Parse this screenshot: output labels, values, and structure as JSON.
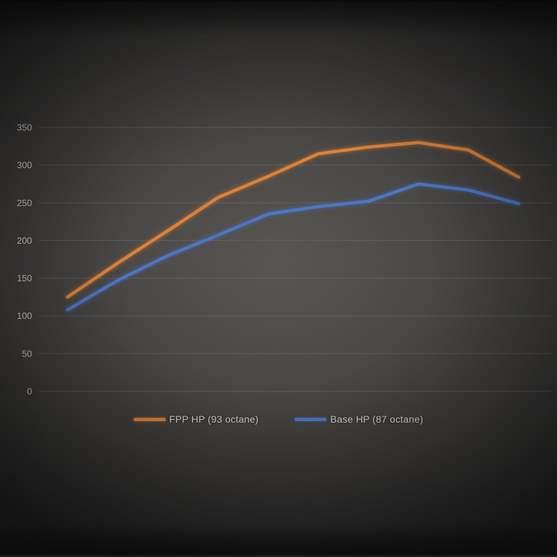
{
  "chart_data": {
    "type": "line",
    "title": "",
    "x": [
      1,
      2,
      3,
      4,
      5,
      6,
      7,
      8,
      9,
      10
    ],
    "x_labels_visible": false,
    "series": [
      {
        "name": "FPP HP (93 octane)",
        "color": "#df8238",
        "values": [
          125,
          170,
          213,
          257,
          285,
          315,
          324,
          330,
          320,
          284
        ]
      },
      {
        "name": "Base HP (87 octane)",
        "color": "#4b77c5",
        "values": [
          108,
          147,
          180,
          207,
          235,
          245,
          252,
          275,
          267,
          249
        ]
      }
    ],
    "y_ticks": [
      0,
      50,
      100,
      150,
      200,
      250,
      300,
      350
    ],
    "ylim": [
      0,
      350
    ],
    "ylabel": "",
    "xlabel": "",
    "grid": "horizontal",
    "legend_position": "bottom"
  },
  "style": {
    "background": "#3f3d3b",
    "gridline_color": "#7a7876",
    "tick_label_color": "#cbc9c7",
    "legend_text_color": "#d6d4d2"
  }
}
